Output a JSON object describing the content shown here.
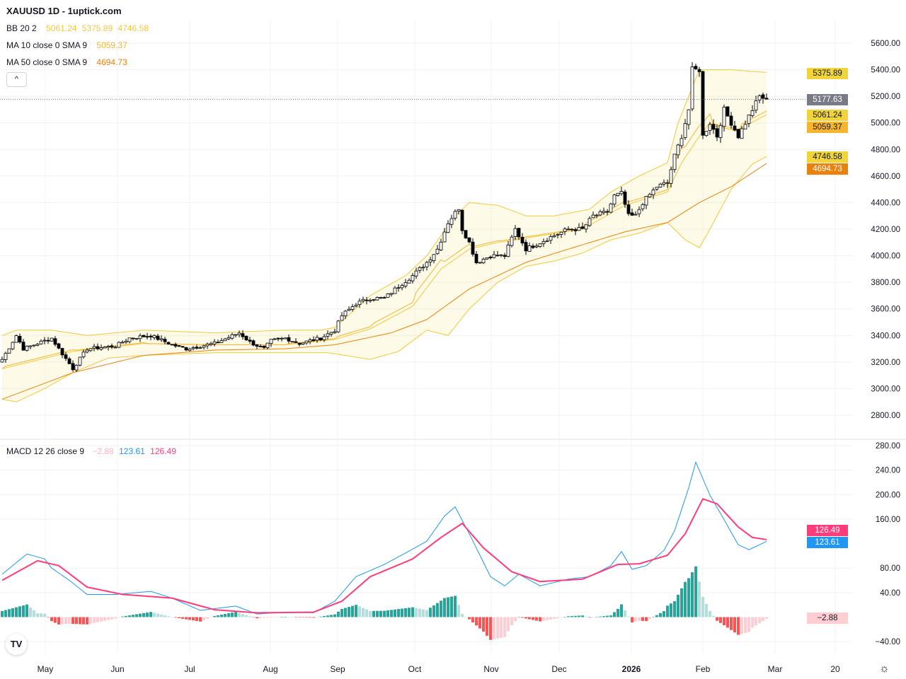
{
  "header": {
    "title": "XAUUSD 1D - 1uptick.com"
  },
  "legend": {
    "bb": {
      "label": "BB 20 2",
      "basis": "5061.24",
      "upper": "5375.89",
      "lower": "4746.58"
    },
    "ma10": {
      "label": "MA 10 close 0 SMA 9",
      "value": "5059.37"
    },
    "ma50": {
      "label": "MA 50 close 0 SMA 9",
      "value": "4694.73"
    },
    "macd": {
      "label": "MACD 12 26 close 9",
      "hist": "−2.88",
      "macd": "123.61",
      "signal": "126.49"
    }
  },
  "collapse_icon": "chevron-up-icon",
  "logo_text": "TV",
  "settings_icon": "gear-icon",
  "colors": {
    "bb": "#f0c93a",
    "ma10": "#f5b52e",
    "ma50": "#e8820c",
    "macd": "#2196f3",
    "signal": "#ff3c7a",
    "up": "#26a69a",
    "up_light": "#b2dfdb",
    "down": "#ff5252",
    "down_light": "#ffcdd2",
    "last": "#787b86"
  },
  "price_badges": {
    "upper": "5375.89",
    "last": "5177.63",
    "basis": "5061.24",
    "ma10": "5059.37",
    "lower": "4746.58",
    "ma50": "4694.73"
  },
  "macd_badges": {
    "signal": "126.49",
    "macd": "123.61",
    "hist": "−2.88"
  },
  "chart_data": [
    {
      "type": "candlestick",
      "title": "XAUUSD 1D",
      "ylim": [
        2700,
        5700
      ],
      "y_ticks": [
        "5600.00",
        "5400.00",
        "5200.00",
        "5000.00",
        "4800.00",
        "4600.00",
        "4400.00",
        "4200.00",
        "4000.00",
        "3800.00",
        "3600.00",
        "3400.00",
        "3200.00",
        "3000.00",
        "2800.00"
      ],
      "x_ticks": [
        "May",
        "Jun",
        "Jul",
        "Aug",
        "Sep",
        "Oct",
        "Nov",
        "Dec",
        "2026",
        "Feb",
        "Mar",
        "20"
      ],
      "close_anchors": [
        [
          0,
          3220
        ],
        [
          4,
          3400
        ],
        [
          6,
          3300
        ],
        [
          14,
          3380
        ],
        [
          16,
          3300
        ],
        [
          20,
          3150
        ],
        [
          24,
          3300
        ],
        [
          32,
          3320
        ],
        [
          36,
          3380
        ],
        [
          42,
          3400
        ],
        [
          48,
          3330
        ],
        [
          52,
          3300
        ],
        [
          60,
          3340
        ],
        [
          67,
          3420
        ],
        [
          70,
          3350
        ],
        [
          74,
          3300
        ],
        [
          76,
          3360
        ],
        [
          80,
          3380
        ],
        [
          84,
          3340
        ],
        [
          90,
          3380
        ],
        [
          94,
          3440
        ],
        [
          96,
          3550
        ],
        [
          100,
          3640
        ],
        [
          104,
          3680
        ],
        [
          108,
          3680
        ],
        [
          112,
          3770
        ],
        [
          116,
          3850
        ],
        [
          120,
          3950
        ],
        [
          123,
          4050
        ],
        [
          126,
          4250
        ],
        [
          129,
          4360
        ],
        [
          130,
          4200
        ],
        [
          132,
          4100
        ],
        [
          134,
          3950
        ],
        [
          138,
          4000
        ],
        [
          142,
          4000
        ],
        [
          145,
          4200
        ],
        [
          148,
          4050
        ],
        [
          152,
          4100
        ],
        [
          155,
          4140
        ],
        [
          160,
          4200
        ],
        [
          164,
          4200
        ],
        [
          167,
          4300
        ],
        [
          171,
          4330
        ],
        [
          173,
          4450
        ],
        [
          175,
          4470
        ],
        [
          177,
          4300
        ],
        [
          179,
          4300
        ],
        [
          181,
          4400
        ],
        [
          185,
          4520
        ],
        [
          188,
          4550
        ],
        [
          190,
          4750
        ],
        [
          192,
          4900
        ],
        [
          194,
          5100
        ],
        [
          195,
          5400
        ],
        [
          197,
          5400
        ],
        [
          198,
          4900
        ],
        [
          200,
          5000
        ],
        [
          202,
          4900
        ],
        [
          204,
          5100
        ],
        [
          206,
          5000
        ],
        [
          208,
          4900
        ],
        [
          210,
          5000
        ],
        [
          212,
          5100
        ],
        [
          214,
          5200
        ],
        [
          216,
          5177.63
        ]
      ],
      "bb_upper": [
        [
          0,
          3400
        ],
        [
          4,
          3440
        ],
        [
          14,
          3440
        ],
        [
          24,
          3400
        ],
        [
          40,
          3440
        ],
        [
          60,
          3420
        ],
        [
          80,
          3440
        ],
        [
          90,
          3440
        ],
        [
          94,
          3460
        ],
        [
          104,
          3700
        ],
        [
          114,
          3850
        ],
        [
          120,
          4000
        ],
        [
          128,
          4300
        ],
        [
          132,
          4400
        ],
        [
          140,
          4380
        ],
        [
          148,
          4300
        ],
        [
          156,
          4300
        ],
        [
          166,
          4350
        ],
        [
          172,
          4480
        ],
        [
          180,
          4600
        ],
        [
          188,
          4700
        ],
        [
          191,
          5000
        ],
        [
          197,
          5400
        ],
        [
          206,
          5400
        ],
        [
          216,
          5380
        ]
      ],
      "bb_lower": [
        [
          0,
          2920
        ],
        [
          4,
          2900
        ],
        [
          12,
          3000
        ],
        [
          20,
          3120
        ],
        [
          30,
          3230
        ],
        [
          40,
          3250
        ],
        [
          60,
          3270
        ],
        [
          80,
          3270
        ],
        [
          92,
          3270
        ],
        [
          104,
          3220
        ],
        [
          112,
          3280
        ],
        [
          120,
          3440
        ],
        [
          126,
          3400
        ],
        [
          132,
          3600
        ],
        [
          140,
          3800
        ],
        [
          148,
          3920
        ],
        [
          156,
          3960
        ],
        [
          164,
          4020
        ],
        [
          172,
          4120
        ],
        [
          180,
          4170
        ],
        [
          188,
          4250
        ],
        [
          193,
          4120
        ],
        [
          197,
          4060
        ],
        [
          200,
          4200
        ],
        [
          206,
          4500
        ],
        [
          212,
          4690
        ],
        [
          216,
          4746.58
        ]
      ],
      "bb_basis": [
        [
          0,
          3150
        ],
        [
          20,
          3280
        ],
        [
          40,
          3340
        ],
        [
          60,
          3330
        ],
        [
          80,
          3330
        ],
        [
          94,
          3370
        ],
        [
          104,
          3450
        ],
        [
          116,
          3620
        ],
        [
          124,
          3900
        ],
        [
          132,
          4050
        ],
        [
          140,
          4100
        ],
        [
          152,
          4150
        ],
        [
          164,
          4200
        ],
        [
          176,
          4380
        ],
        [
          188,
          4480
        ],
        [
          192,
          4700
        ],
        [
          197,
          4900
        ],
        [
          200,
          5000
        ],
        [
          208,
          4950
        ],
        [
          216,
          5061.24
        ]
      ],
      "ma50": [
        [
          0,
          2920
        ],
        [
          20,
          3120
        ],
        [
          40,
          3250
        ],
        [
          60,
          3290
        ],
        [
          80,
          3300
        ],
        [
          94,
          3330
        ],
        [
          110,
          3420
        ],
        [
          120,
          3520
        ],
        [
          132,
          3750
        ],
        [
          148,
          3950
        ],
        [
          160,
          4050
        ],
        [
          176,
          4180
        ],
        [
          188,
          4250
        ],
        [
          197,
          4400
        ],
        [
          206,
          4520
        ],
        [
          216,
          4694.73
        ]
      ]
    },
    {
      "type": "line",
      "title": "MACD 12 26 close 9",
      "ylim": [
        -60,
        290
      ],
      "y_ticks": [
        "280.00",
        "240.00",
        "200.00",
        "160.00",
        "80.00",
        "40.00",
        "−40.00"
      ],
      "macd": [
        [
          0,
          70
        ],
        [
          7,
          103
        ],
        [
          12,
          95
        ],
        [
          14,
          80
        ],
        [
          19,
          60
        ],
        [
          24,
          37
        ],
        [
          32,
          37
        ],
        [
          42,
          42
        ],
        [
          48,
          31
        ],
        [
          56,
          11
        ],
        [
          66,
          18
        ],
        [
          72,
          5
        ],
        [
          80,
          8
        ],
        [
          88,
          7
        ],
        [
          94,
          26
        ],
        [
          100,
          66
        ],
        [
          108,
          86
        ],
        [
          116,
          111
        ],
        [
          120,
          124
        ],
        [
          125,
          165
        ],
        [
          128,
          180
        ],
        [
          132,
          136
        ],
        [
          138,
          66
        ],
        [
          142,
          51
        ],
        [
          146,
          70
        ],
        [
          152,
          51
        ],
        [
          160,
          62
        ],
        [
          166,
          66
        ],
        [
          172,
          84
        ],
        [
          175,
          107
        ],
        [
          178,
          78
        ],
        [
          182,
          84
        ],
        [
          187,
          109
        ],
        [
          190,
          141
        ],
        [
          194,
          211
        ],
        [
          196,
          253
        ],
        [
          200,
          199
        ],
        [
          204,
          159
        ],
        [
          208,
          118
        ],
        [
          211,
          110
        ],
        [
          216,
          123.61
        ]
      ],
      "signal": [
        [
          0,
          60
        ],
        [
          10,
          92
        ],
        [
          16,
          84
        ],
        [
          24,
          49
        ],
        [
          34,
          37
        ],
        [
          48,
          31
        ],
        [
          60,
          12
        ],
        [
          72,
          7
        ],
        [
          88,
          8
        ],
        [
          96,
          26
        ],
        [
          104,
          66
        ],
        [
          116,
          95
        ],
        [
          124,
          130
        ],
        [
          130,
          153
        ],
        [
          136,
          113
        ],
        [
          144,
          74
        ],
        [
          152,
          58
        ],
        [
          164,
          62
        ],
        [
          174,
          86
        ],
        [
          180,
          87
        ],
        [
          188,
          101
        ],
        [
          193,
          136
        ],
        [
          198,
          193
        ],
        [
          202,
          185
        ],
        [
          208,
          147
        ],
        [
          212,
          130
        ],
        [
          216,
          126.49
        ]
      ]
    }
  ]
}
